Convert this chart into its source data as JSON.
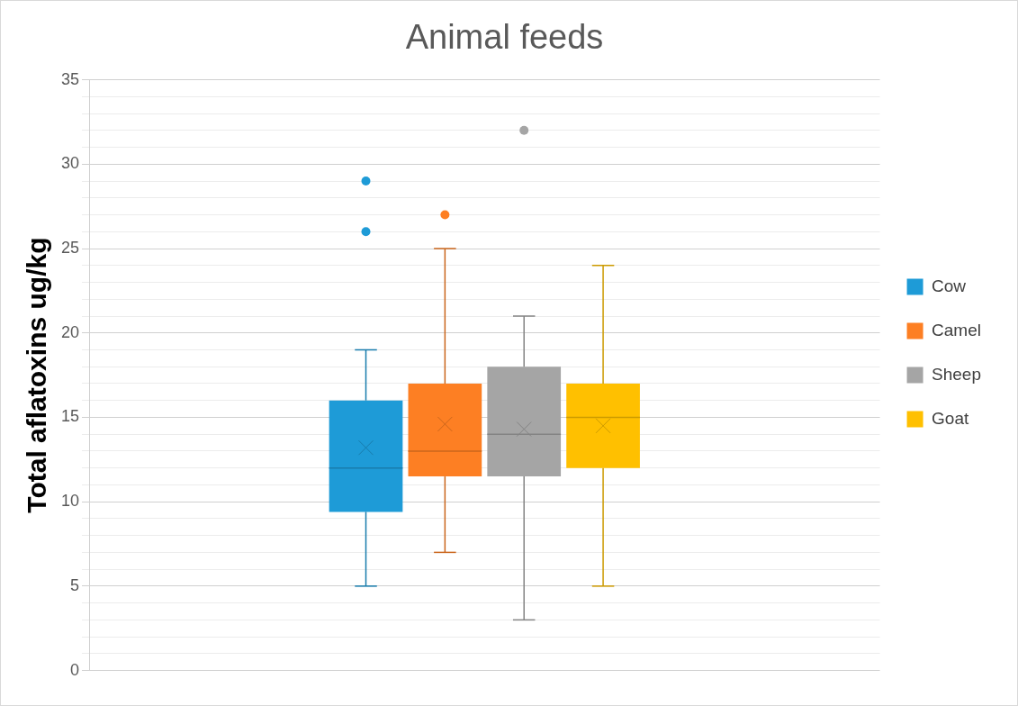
{
  "chart_data": {
    "type": "box",
    "title": "Animal feeds",
    "ylabel": "Total aflatoxins ug/kg",
    "categories": [
      null
    ],
    "series": [
      {
        "name": "Cow",
        "color": "#1e9bd7",
        "boxes": [
          {
            "low": 5,
            "q1": 9.4,
            "median": 12,
            "q3": 16,
            "high": 19,
            "mean": 13.2,
            "outliers": [
              26,
              29
            ]
          }
        ]
      },
      {
        "name": "Camel",
        "color": "#fd7f23",
        "boxes": [
          {
            "low": 7,
            "q1": 11.5,
            "median": 13,
            "q3": 17,
            "high": 25,
            "mean": 14.6,
            "outliers": [
              27
            ]
          }
        ]
      },
      {
        "name": "Sheep",
        "color": "#a5a5a5",
        "boxes": [
          {
            "low": 3,
            "q1": 11.5,
            "median": 14,
            "q3": 18,
            "high": 21,
            "mean": 14.3,
            "outliers": [
              32
            ]
          }
        ]
      },
      {
        "name": "Goat",
        "color": "#ffc000",
        "boxes": [
          {
            "low": 5,
            "q1": 12,
            "median": 15,
            "q3": 17,
            "high": 24,
            "mean": 14.5
          }
        ]
      }
    ],
    "ylim": [
      0,
      35
    ],
    "yticks": [
      0,
      {
        "value": 1,
        "label": null
      },
      {
        "value": 2,
        "label": null
      },
      {
        "value": 3,
        "label": null
      },
      {
        "value": 4,
        "label": null
      },
      5,
      {
        "value": 6,
        "label": null
      },
      {
        "value": 7,
        "label": null
      },
      {
        "value": 8,
        "label": null
      },
      {
        "value": 9,
        "label": null
      },
      10,
      {
        "value": 11,
        "label": null
      },
      {
        "value": 12,
        "label": null
      },
      {
        "value": 13,
        "label": null
      },
      {
        "value": 14,
        "label": null
      },
      15,
      {
        "value": 16,
        "label": null
      },
      {
        "value": 17,
        "label": null
      },
      {
        "value": 18,
        "label": null
      },
      {
        "value": 19,
        "label": null
      },
      20,
      {
        "value": 21,
        "label": null
      },
      {
        "value": 22,
        "label": null
      },
      {
        "value": 23,
        "label": null
      },
      {
        "value": 24,
        "label": null
      },
      25,
      {
        "value": 26,
        "label": null
      },
      {
        "value": 27,
        "label": null
      },
      {
        "value": 28,
        "label": null
      },
      {
        "value": 29,
        "label": null
      },
      30,
      {
        "value": 31,
        "label": null
      },
      {
        "value": 32,
        "label": null
      },
      {
        "value": 33,
        "label": null
      },
      {
        "value": 34,
        "label": null
      },
      35
    ],
    "grid": true,
    "legend": "right"
  }
}
